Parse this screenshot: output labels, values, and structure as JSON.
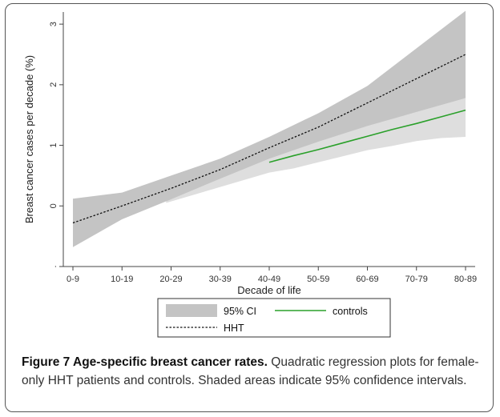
{
  "chart_data": {
    "type": "line",
    "xlabel": "Decade of life",
    "ylabel": "Breast cancer cases per decade (%)",
    "categories": [
      "0-9",
      "10-19",
      "20-29",
      "30-39",
      "40-49",
      "50-59",
      "60-69",
      "70-79",
      "80-89"
    ],
    "y_ticks": [
      ".",
      "0",
      "1",
      "2",
      "3"
    ],
    "ylim": [
      -1,
      3.2
    ],
    "grid": false,
    "legend_position": "bottom",
    "series": [
      {
        "name": "HHT",
        "style": "dashed",
        "color": "#111111",
        "x": [
          0,
          1,
          2,
          3,
          4,
          5,
          6,
          7,
          8
        ],
        "values": [
          -0.28,
          0.0,
          0.29,
          0.6,
          0.96,
          1.3,
          1.7,
          2.1,
          2.5
        ],
        "ci_lower": [
          -0.68,
          -0.22,
          0.11,
          0.45,
          0.78,
          1.06,
          1.32,
          1.55,
          1.78
        ],
        "ci_upper": [
          0.12,
          0.22,
          0.5,
          0.78,
          1.14,
          1.53,
          1.98,
          2.6,
          3.22
        ]
      },
      {
        "name": "controls",
        "style": "solid",
        "color": "#2aa02a",
        "x": [
          4.0,
          4.5,
          5,
          5.5,
          6,
          6.5,
          7,
          7.5,
          8
        ],
        "values": [
          0.72,
          0.83,
          0.93,
          1.04,
          1.15,
          1.26,
          1.36,
          1.47,
          1.58
        ],
        "ci_lower": [
          0.55,
          0.62,
          0.72,
          0.82,
          0.92,
          0.99,
          1.07,
          1.12,
          1.14
        ],
        "ci_upper": [
          0.9,
          1.04,
          1.17,
          1.3,
          1.44,
          1.52,
          1.6,
          1.7,
          1.78
        ]
      }
    ],
    "controls_band_start_x": 1.9,
    "controls_band_start_lower": 0.05,
    "controls_band_start_upper": 0.15,
    "legend": {
      "ci_label": "95% CI",
      "controls_label": "controls",
      "hht_label": "HHT"
    }
  },
  "colors": {
    "ci_band": "#c4c4c4",
    "controls_band": "#dedede",
    "axis": "#444444"
  },
  "caption": {
    "lead": "Figure 7 Age-specific breast cancer rates.",
    "body": " Quadratic regression plots for female-only HHT patients and controls. Shaded areas indicate 95% confidence intervals."
  }
}
